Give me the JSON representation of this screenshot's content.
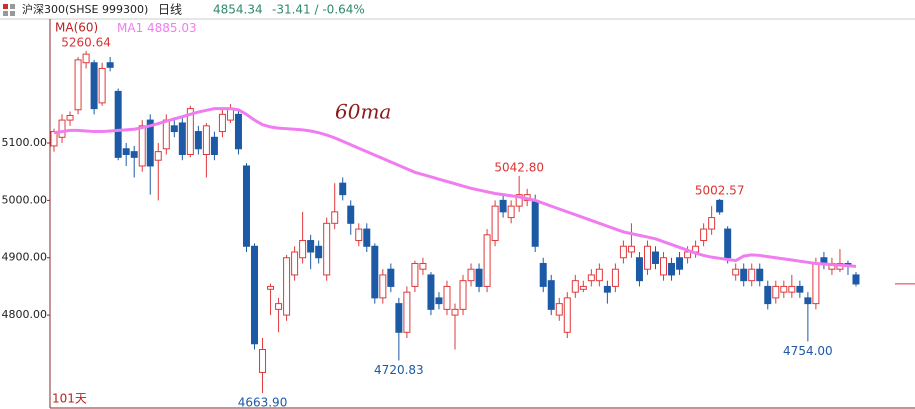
{
  "chart_data": {
    "type": "candlestick",
    "header": {
      "symbol": "沪深300(SHSE 999300)",
      "period": "日线",
      "change": "-31.41 / -0.64%"
    },
    "legend_title": "MA(60)",
    "annotation": "60ma",
    "days_label": "101天",
    "up_color": "#e0393b",
    "down_color": "#1d5aa6",
    "ylim": [
      4638,
      5318
    ],
    "yticks": [
      {
        "value": 4800,
        "label": "4800.00"
      },
      {
        "value": 4900,
        "label": "4900.00"
      },
      {
        "value": 5000,
        "label": "5000.00"
      },
      {
        "value": 5100,
        "label": "5100.00"
      }
    ],
    "open": [
      5095,
      5110,
      5140,
      5158,
      5240,
      5240,
      5170,
      5240,
      5190,
      5090,
      5085,
      5060,
      5140,
      5070,
      5090,
      5130,
      5135,
      5080,
      5120,
      5080,
      5110,
      5120,
      5140,
      5150,
      5060,
      4920,
      4700,
      4845,
      4810,
      4800,
      4870,
      4900,
      4930,
      4920,
      4870,
      4960,
      5030,
      4990,
      4930,
      4950,
      4920,
      4830,
      4880,
      4820,
      4770,
      4850,
      4880,
      4870,
      4830,
      4810,
      4800,
      4810,
      4860,
      4880,
      4850,
      4930,
      5000,
      4970,
      4990,
      5000,
      5000,
      4890,
      4860,
      4800,
      4770,
      4840,
      4845,
      4860,
      4860,
      4850,
      4850,
      4900,
      4910,
      4900,
      4880,
      4910,
      4870,
      4890,
      4900,
      4900,
      4910,
      4930,
      4950,
      5000,
      4950,
      4870,
      4880,
      4860,
      4880,
      4850,
      4830,
      4840,
      4840,
      4850,
      4830,
      4820,
      4900,
      4880,
      4880,
      4890,
      4870
    ],
    "high": [
      5125,
      5150,
      5155,
      5250,
      5260.64,
      5245,
      5240,
      5250,
      5195,
      5100,
      5095,
      5140,
      5150,
      5100,
      5150,
      5145,
      5145,
      5165,
      5130,
      5135,
      5120,
      5160,
      5168,
      5155,
      5065,
      4925,
      4760,
      4855,
      4830,
      4905,
      4920,
      4980,
      4940,
      4930,
      4970,
      5030,
      5040,
      5000,
      4960,
      4960,
      4925,
      4880,
      4890,
      4830,
      4850,
      4895,
      4900,
      4875,
      4840,
      4860,
      4820,
      4870,
      4890,
      4890,
      4950,
      5000,
      5010,
      5000,
      5042.8,
      5020,
      5010,
      4900,
      4870,
      4830,
      4840,
      4870,
      4860,
      4880,
      4890,
      4860,
      4890,
      4930,
      4960,
      4910,
      4930,
      4920,
      4910,
      4900,
      4910,
      4920,
      4930,
      4960,
      4990,
      5002.57,
      4955,
      4890,
      4890,
      4890,
      4890,
      4860,
      4860,
      4860,
      4870,
      4860,
      4840,
      4900,
      4910,
      4900,
      4915,
      4895,
      4875
    ],
    "low": [
      5085,
      5100,
      5130,
      5150,
      5230,
      5150,
      5165,
      5225,
      5070,
      5060,
      5040,
      5050,
      5010,
      5000,
      5080,
      5110,
      5070,
      5075,
      5080,
      5040,
      5070,
      5110,
      5135,
      5080,
      4910,
      4740,
      4663.9,
      4800,
      4770,
      4790,
      4860,
      4890,
      4880,
      4890,
      4860,
      4950,
      5000,
      4940,
      4920,
      4910,
      4820,
      4820,
      4840,
      4720.83,
      4760,
      4840,
      4870,
      4800,
      4810,
      4800,
      4740,
      4800,
      4850,
      4840,
      4840,
      4920,
      4970,
      4960,
      4980,
      4990,
      4910,
      4840,
      4800,
      4790,
      4760,
      4830,
      4840,
      4850,
      4850,
      4820,
      4840,
      4890,
      4900,
      4850,
      4870,
      4880,
      4860,
      4860,
      4870,
      4890,
      4900,
      4920,
      4940,
      4975,
      4890,
      4860,
      4850,
      4850,
      4850,
      4810,
      4820,
      4830,
      4830,
      4830,
      4754,
      4810,
      4880,
      4870,
      4875,
      4870,
      4850
    ],
    "close": [
      5120,
      5140,
      5148,
      5245,
      5255,
      5160,
      5230,
      5232,
      5075,
      5080,
      5075,
      5130,
      5060,
      5085,
      5140,
      5120,
      5080,
      5160,
      5090,
      5130,
      5080,
      5150,
      5160,
      5090,
      4920,
      4750,
      4740,
      4850,
      4820,
      4900,
      4910,
      4930,
      4910,
      4900,
      4960,
      4980,
      5010,
      4960,
      4950,
      4920,
      4830,
      4870,
      4850,
      4770,
      4840,
      4890,
      4890,
      4810,
      4820,
      4850,
      4810,
      4860,
      4880,
      4850,
      4940,
      4990,
      4980,
      4990,
      5010,
      5010,
      4920,
      4850,
      4810,
      4820,
      4830,
      4860,
      4850,
      4870,
      4880,
      4840,
      4880,
      4920,
      4920,
      4860,
      4920,
      4890,
      4900,
      4870,
      4880,
      4910,
      4920,
      4950,
      4970,
      4980,
      4900,
      4880,
      4860,
      4880,
      4860,
      4820,
      4850,
      4850,
      4850,
      4840,
      4820,
      4890,
      4890,
      4890,
      4890,
      4885.75,
      4854.34
    ],
    "series": [
      {
        "name": "MA1",
        "color": "#f07cf0",
        "values": [
          5118,
          5120,
          5122,
          5122,
          5121,
          5120,
          5120,
          5121,
          5122,
          5123,
          5124,
          5127,
          5130,
          5134,
          5138,
          5142,
          5146,
          5150,
          5154,
          5157,
          5160,
          5160,
          5160,
          5158,
          5150,
          5140,
          5132,
          5128,
          5126,
          5125,
          5124,
          5123,
          5121,
          5118,
          5114,
          5109,
          5103,
          5097,
          5091,
          5085,
          5079,
          5073,
          5067,
          5061,
          5055,
          5049,
          5045,
          5041,
          5037,
          5033,
          5029,
          5025,
          5021,
          5018,
          5015,
          5012,
          5010,
          5008,
          5006,
          5003,
          5000,
          4995,
          4990,
          4985,
          4980,
          4975,
          4970,
          4965,
          4960,
          4955,
          4950,
          4945,
          4942,
          4939,
          4936,
          4933,
          4928,
          4923,
          4918,
          4913,
          4908,
          4904,
          4901,
          4899,
          4897,
          4895,
          4903,
          4905,
          4904,
          4902,
          4900,
          4898,
          4896,
          4894,
          4892,
          4890,
          4889,
          4888,
          4887,
          4886,
          4885.03
        ]
      }
    ],
    "extreme_labels": [
      {
        "index": 4,
        "field": "high",
        "label": "5260.64"
      },
      {
        "index": 26,
        "field": "low",
        "label": "4663.90"
      },
      {
        "index": 43,
        "field": "low",
        "label": "4720.83"
      },
      {
        "index": 58,
        "field": "high",
        "label": "5042.80"
      },
      {
        "index": 83,
        "field": "high",
        "label": "5002.57"
      },
      {
        "index": 94,
        "field": "low",
        "label": "4754.00"
      }
    ]
  }
}
